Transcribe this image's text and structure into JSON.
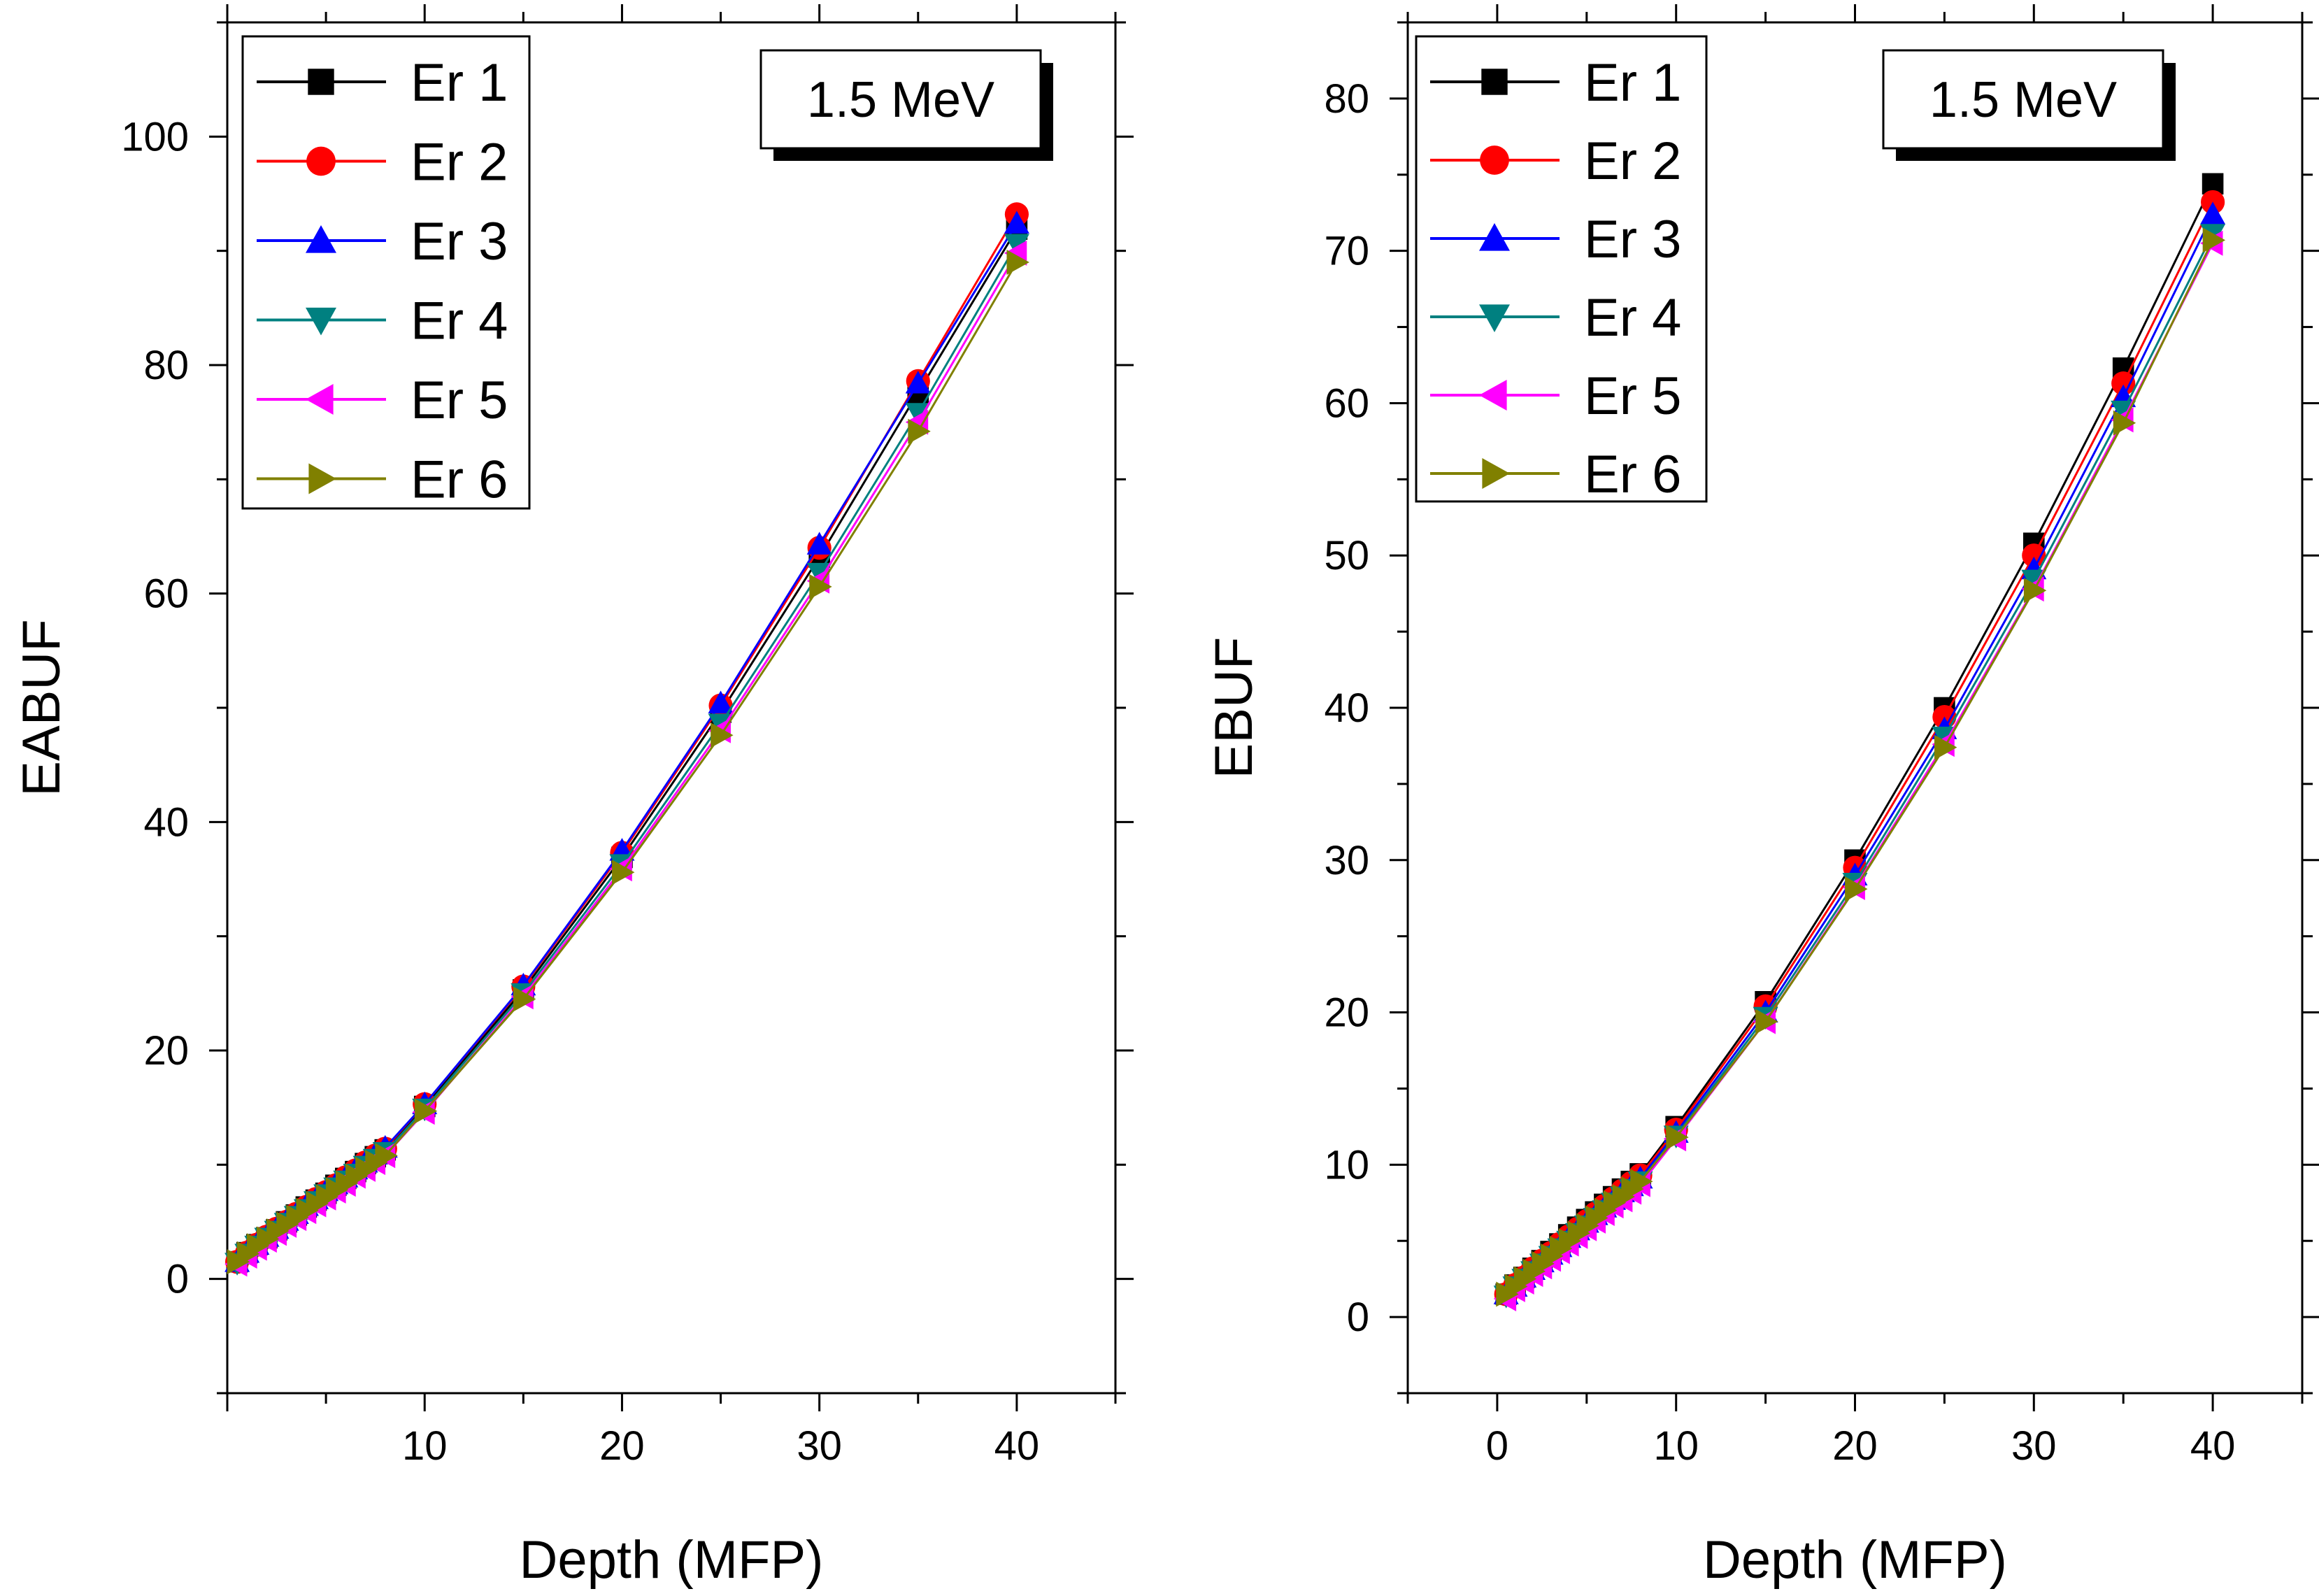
{
  "chart_data": [
    {
      "type": "line",
      "panel": "left",
      "title": "",
      "annotation": "1.5 MeV",
      "xlabel": "Depth (MFP)",
      "ylabel": "EABUF",
      "xlim": [
        0,
        45
      ],
      "ylim": [
        -10,
        110
      ],
      "xticks": [
        10,
        20,
        30,
        40
      ],
      "yticks": [
        0,
        20,
        40,
        60,
        80,
        100
      ],
      "legend_position": "top-left",
      "x": [
        0.5,
        1,
        1.5,
        2,
        2.5,
        3,
        3.5,
        4,
        4.5,
        5,
        5.5,
        6,
        6.5,
        7,
        7.5,
        8,
        10,
        15,
        20,
        25,
        30,
        35,
        40
      ],
      "series": [
        {
          "name": "Er 1",
          "color": "#000000",
          "marker": "square",
          "values": [
            1.5,
            2.3,
            3.0,
            3.6,
            4.3,
            5.0,
            5.6,
            6.3,
            6.9,
            7.5,
            8.2,
            8.8,
            9.4,
            10.1,
            10.7,
            11.3,
            15.1,
            25.3,
            36.9,
            49.6,
            63.2,
            77.6,
            91.9
          ]
        },
        {
          "name": "Er 2",
          "color": "#ff0000",
          "marker": "circle",
          "values": [
            1.5,
            2.3,
            3.0,
            3.7,
            4.4,
            5.0,
            5.7,
            6.3,
            7.0,
            7.6,
            8.2,
            8.9,
            9.5,
            10.2,
            10.8,
            11.4,
            15.3,
            25.6,
            37.3,
            50.2,
            64.0,
            78.6,
            93.2
          ]
        },
        {
          "name": "Er 3",
          "color": "#0000ff",
          "marker": "triangle-up",
          "values": [
            1.5,
            2.3,
            3.0,
            3.7,
            4.4,
            5.1,
            5.7,
            6.4,
            7.0,
            7.7,
            8.3,
            8.9,
            9.6,
            10.2,
            10.9,
            11.5,
            15.3,
            25.7,
            37.5,
            50.4,
            64.3,
            78.4,
            92.4
          ]
        },
        {
          "name": "Er 4",
          "color": "#008080",
          "marker": "triangle-down",
          "values": [
            1.4,
            2.2,
            2.9,
            3.6,
            4.2,
            4.9,
            5.5,
            6.1,
            6.8,
            7.4,
            8.0,
            8.6,
            9.2,
            9.9,
            10.5,
            11.1,
            14.9,
            25.0,
            36.3,
            48.6,
            61.8,
            75.8,
            90.6
          ]
        },
        {
          "name": "Er 5",
          "color": "#ff00ff",
          "marker": "triangle-left",
          "values": [
            1.3,
            2.0,
            2.7,
            3.4,
            4.0,
            4.7,
            5.3,
            5.9,
            6.5,
            7.1,
            7.7,
            8.3,
            9.0,
            9.6,
            10.2,
            10.8,
            14.6,
            24.7,
            35.9,
            48.0,
            61.1,
            75.0,
            89.8
          ]
        },
        {
          "name": "Er 6",
          "color": "#808000",
          "marker": "triangle-right",
          "values": [
            1.5,
            2.2,
            2.9,
            3.5,
            4.2,
            4.8,
            5.4,
            6.0,
            6.6,
            7.2,
            7.8,
            8.4,
            9.0,
            9.6,
            10.2,
            10.8,
            14.7,
            24.5,
            35.6,
            47.6,
            60.6,
            74.2,
            89.0
          ]
        }
      ]
    },
    {
      "type": "line",
      "panel": "right",
      "title": "",
      "annotation": "1.5 MeV",
      "xlabel": "Depth (MFP)",
      "ylabel": "EBUF",
      "xlim": [
        -5,
        45
      ],
      "ylim": [
        -5,
        85
      ],
      "xticks": [
        0,
        10,
        20,
        30,
        40
      ],
      "yticks": [
        0,
        10,
        20,
        30,
        40,
        50,
        60,
        70,
        80
      ],
      "legend_position": "top-left",
      "x": [
        0.5,
        1,
        1.5,
        2,
        2.5,
        3,
        3.5,
        4,
        4.5,
        5,
        5.5,
        6,
        6.5,
        7,
        7.5,
        8,
        10,
        15,
        20,
        25,
        30,
        35,
        40
      ],
      "series": [
        {
          "name": "Er 1",
          "color": "#000000",
          "marker": "square",
          "values": [
            1.5,
            2.1,
            2.6,
            3.2,
            3.7,
            4.3,
            4.8,
            5.4,
            5.9,
            6.4,
            6.9,
            7.4,
            7.9,
            8.4,
            8.9,
            9.4,
            12.5,
            20.7,
            30.0,
            40.0,
            50.8,
            62.3,
            74.4
          ]
        },
        {
          "name": "Er 2",
          "color": "#ff0000",
          "marker": "circle",
          "values": [
            1.5,
            2.1,
            2.6,
            3.2,
            3.7,
            4.2,
            4.8,
            5.3,
            5.8,
            6.3,
            6.8,
            7.3,
            7.8,
            8.3,
            8.8,
            9.3,
            12.3,
            20.4,
            29.5,
            39.4,
            50.0,
            61.3,
            73.2
          ]
        },
        {
          "name": "Er 3",
          "color": "#0000ff",
          "marker": "triangle-up",
          "values": [
            1.5,
            2.0,
            2.6,
            3.1,
            3.6,
            4.1,
            4.6,
            5.2,
            5.7,
            6.2,
            6.7,
            7.2,
            7.7,
            8.2,
            8.6,
            9.1,
            12.1,
            20.0,
            29.0,
            38.6,
            49.1,
            60.4,
            72.4
          ]
        },
        {
          "name": "Er 4",
          "color": "#008080",
          "marker": "triangle-down",
          "values": [
            1.4,
            2.0,
            2.5,
            3.0,
            3.5,
            4.0,
            4.5,
            5.0,
            5.5,
            6.0,
            6.5,
            7.0,
            7.5,
            7.9,
            8.4,
            8.9,
            11.9,
            19.7,
            28.5,
            38.1,
            48.4,
            59.5,
            71.1
          ]
        },
        {
          "name": "Er 5",
          "color": "#ff00ff",
          "marker": "triangle-left",
          "values": [
            1.2,
            1.8,
            2.3,
            2.8,
            3.3,
            3.8,
            4.3,
            4.8,
            5.3,
            5.8,
            6.3,
            6.8,
            7.3,
            7.7,
            8.2,
            8.7,
            11.7,
            19.4,
            28.2,
            37.6,
            47.8,
            58.9,
            70.5
          ]
        },
        {
          "name": "Er 6",
          "color": "#808000",
          "marker": "triangle-right",
          "values": [
            1.5,
            2.0,
            2.5,
            3.0,
            3.5,
            4.0,
            4.5,
            5.0,
            5.5,
            6.0,
            6.5,
            7.0,
            7.5,
            7.9,
            8.4,
            8.9,
            11.8,
            19.4,
            28.1,
            37.4,
            47.7,
            58.7,
            70.7
          ]
        }
      ]
    }
  ]
}
